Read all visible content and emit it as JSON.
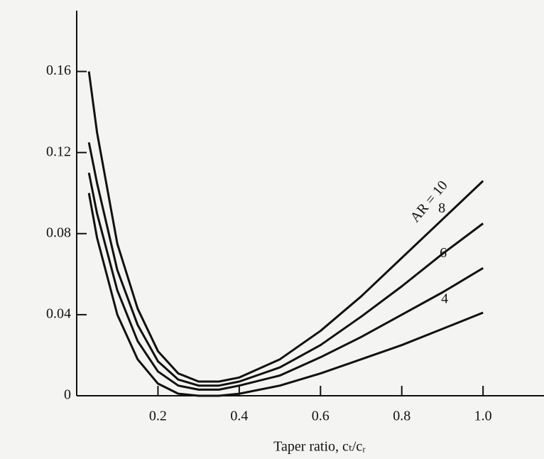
{
  "chart_data": {
    "type": "line",
    "x_label": "Taper ratio, cₜ/cᵣ",
    "x": [
      0.03,
      0.05,
      0.1,
      0.15,
      0.2,
      0.25,
      0.3,
      0.35,
      0.4,
      0.5,
      0.6,
      0.7,
      0.8,
      0.9,
      1.0
    ],
    "series": [
      {
        "name": "AR = 10",
        "color": "#111111",
        "values": [
          0.16,
          0.13,
          0.075,
          0.043,
          0.022,
          0.011,
          0.007,
          0.007,
          0.009,
          0.018,
          0.032,
          0.049,
          0.068,
          0.087,
          0.106
        ]
      },
      {
        "name": "8",
        "color": "#111111",
        "values": [
          0.125,
          0.105,
          0.062,
          0.035,
          0.017,
          0.008,
          0.005,
          0.005,
          0.007,
          0.014,
          0.025,
          0.039,
          0.054,
          0.07,
          0.085
        ]
      },
      {
        "name": "6",
        "color": "#111111",
        "values": [
          0.11,
          0.09,
          0.052,
          0.027,
          0.012,
          0.005,
          0.003,
          0.003,
          0.005,
          0.01,
          0.019,
          0.029,
          0.04,
          0.051,
          0.063
        ]
      },
      {
        "name": "4",
        "color": "#111111",
        "values": [
          0.1,
          0.078,
          0.04,
          0.018,
          0.006,
          0.001,
          0,
          0,
          0.001,
          0.005,
          0.011,
          0.018,
          0.025,
          0.033,
          0.041
        ]
      }
    ],
    "xlim": [
      0,
      1.15
    ],
    "ylim": [
      0,
      0.19
    ],
    "xticks": [
      0.2,
      0.4,
      0.6,
      0.8,
      {
        "value": 1,
        "label": "1.0"
      }
    ],
    "yticks": [
      0,
      0.04,
      0.08,
      0.12,
      0.16
    ],
    "grid": false
  }
}
